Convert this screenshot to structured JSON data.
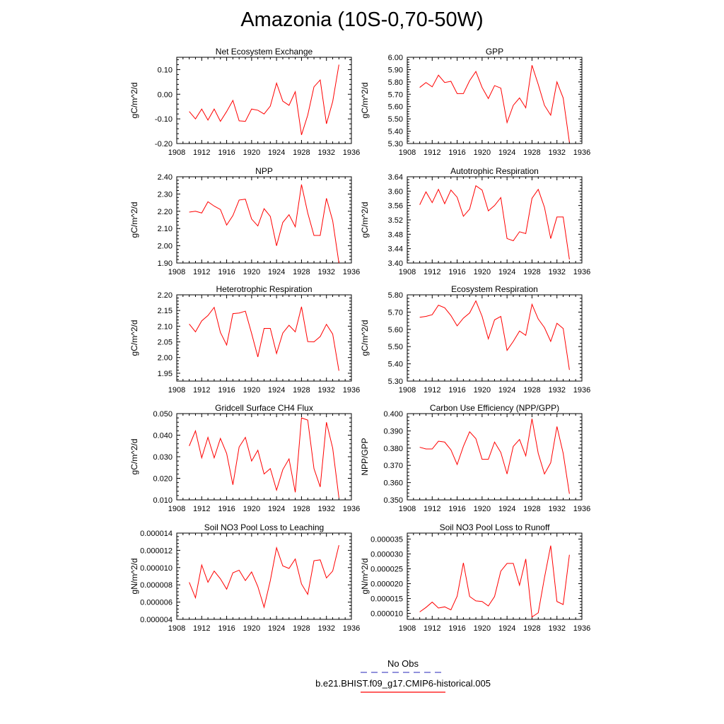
{
  "page": {
    "title": "Amazonia (10S-0,70-50W)"
  },
  "legend": {
    "entries": [
      {
        "label": "No Obs",
        "color": "#5050c8",
        "dash": true
      },
      {
        "label": "b.e21.BHIST.f09_g17.CMIP6-historical.005",
        "color": "#ff0000",
        "dash": false
      }
    ]
  },
  "chart_data": [
    {
      "type": "line",
      "title": "Net Ecosystem Exchange",
      "ylabel": "gC/m^2/d",
      "xlim": [
        1908,
        1936
      ],
      "ylim": [
        -0.2,
        0.15
      ],
      "xticks": [
        1908,
        1912,
        1916,
        1920,
        1924,
        1928,
        1932,
        1936
      ],
      "yticks": [
        "-0.20",
        "-0.10",
        "0.00",
        "0.10"
      ],
      "color": "#ff0000",
      "x": [
        1910,
        1911,
        1912,
        1913,
        1914,
        1915,
        1916,
        1917,
        1918,
        1919,
        1920,
        1921,
        1922,
        1923,
        1924,
        1925,
        1926,
        1927,
        1928,
        1929,
        1930,
        1931,
        1932,
        1933,
        1934
      ],
      "values": [
        -0.07,
        -0.1,
        -0.06,
        -0.105,
        -0.06,
        -0.11,
        -0.07,
        -0.025,
        -0.108,
        -0.11,
        -0.06,
        -0.065,
        -0.08,
        -0.048,
        0.045,
        -0.028,
        -0.045,
        0.01,
        -0.165,
        -0.085,
        0.03,
        0.058,
        -0.12,
        -0.03,
        0.12
      ]
    },
    {
      "type": "line",
      "title": "GPP",
      "ylabel": "gC/m^2/d",
      "xlim": [
        1908,
        1936
      ],
      "ylim": [
        5.3,
        6.0
      ],
      "xticks": [
        1908,
        1912,
        1916,
        1920,
        1924,
        1928,
        1932,
        1936
      ],
      "yticks": [
        "5.30",
        "5.40",
        "5.50",
        "5.60",
        "5.70",
        "5.80",
        "5.90",
        "6.00"
      ],
      "color": "#ff0000",
      "x": [
        1910,
        1911,
        1912,
        1913,
        1914,
        1915,
        1916,
        1917,
        1918,
        1919,
        1920,
        1921,
        1922,
        1923,
        1924,
        1925,
        1926,
        1927,
        1928,
        1929,
        1930,
        1931,
        1932,
        1933,
        1934
      ],
      "values": [
        5.755,
        5.795,
        5.76,
        5.855,
        5.795,
        5.805,
        5.705,
        5.705,
        5.81,
        5.885,
        5.755,
        5.665,
        5.77,
        5.75,
        5.47,
        5.61,
        5.67,
        5.59,
        5.935,
        5.78,
        5.61,
        5.53,
        5.8,
        5.67,
        5.31
      ]
    },
    {
      "type": "line",
      "title": "NPP",
      "ylabel": "gC/m^2/d",
      "xlim": [
        1908,
        1936
      ],
      "ylim": [
        1.9,
        2.4
      ],
      "xticks": [
        1908,
        1912,
        1916,
        1920,
        1924,
        1928,
        1932,
        1936
      ],
      "yticks": [
        "1.90",
        "2.00",
        "2.10",
        "2.20",
        "2.30",
        "2.40"
      ],
      "color": "#ff0000",
      "x": [
        1910,
        1911,
        1912,
        1913,
        1914,
        1915,
        1916,
        1917,
        1918,
        1919,
        1920,
        1921,
        1922,
        1923,
        1924,
        1925,
        1926,
        1927,
        1928,
        1929,
        1930,
        1931,
        1932,
        1933,
        1934
      ],
      "values": [
        2.195,
        2.2,
        2.19,
        2.255,
        2.23,
        2.21,
        2.12,
        2.175,
        2.265,
        2.27,
        2.155,
        2.115,
        2.215,
        2.17,
        2.0,
        2.135,
        2.18,
        2.11,
        2.355,
        2.19,
        2.06,
        2.06,
        2.275,
        2.145,
        1.9
      ]
    },
    {
      "type": "line",
      "title": "Autotrophic Respiration",
      "ylabel": "gC/m^2/d",
      "xlim": [
        1908,
        1936
      ],
      "ylim": [
        3.4,
        3.64
      ],
      "xticks": [
        1908,
        1912,
        1916,
        1920,
        1924,
        1928,
        1932,
        1936
      ],
      "yticks": [
        "3.40",
        "3.44",
        "3.48",
        "3.52",
        "3.56",
        "3.60",
        "3.64"
      ],
      "color": "#ff0000",
      "x": [
        1910,
        1911,
        1912,
        1913,
        1914,
        1915,
        1916,
        1917,
        1918,
        1919,
        1920,
        1921,
        1922,
        1923,
        1924,
        1925,
        1926,
        1927,
        1928,
        1929,
        1930,
        1931,
        1932,
        1933,
        1934
      ],
      "values": [
        3.562,
        3.598,
        3.568,
        3.605,
        3.565,
        3.603,
        3.583,
        3.53,
        3.55,
        3.615,
        3.603,
        3.545,
        3.56,
        3.582,
        3.468,
        3.462,
        3.487,
        3.482,
        3.58,
        3.605,
        3.555,
        3.468,
        3.528,
        3.528,
        3.41
      ]
    },
    {
      "type": "line",
      "title": "Heterotrophic Respiration",
      "ylabel": "gC/m^2/d",
      "xlim": [
        1908,
        1936
      ],
      "ylim": [
        1.925,
        2.2
      ],
      "xticks": [
        1908,
        1912,
        1916,
        1920,
        1924,
        1928,
        1932,
        1936
      ],
      "yticks": [
        "1.95",
        "2.00",
        "2.05",
        "2.10",
        "2.15",
        "2.20"
      ],
      "color": "#ff0000",
      "x": [
        1910,
        1911,
        1912,
        1913,
        1914,
        1915,
        1916,
        1917,
        1918,
        1919,
        1920,
        1921,
        1922,
        1923,
        1924,
        1925,
        1926,
        1927,
        1928,
        1929,
        1930,
        1931,
        1932,
        1933,
        1934
      ],
      "values": [
        2.107,
        2.082,
        2.117,
        2.134,
        2.16,
        2.08,
        2.04,
        2.14,
        2.142,
        2.148,
        2.077,
        2.002,
        2.093,
        2.093,
        2.013,
        2.078,
        2.103,
        2.082,
        2.162,
        2.051,
        2.05,
        2.067,
        2.106,
        2.075,
        1.958
      ]
    },
    {
      "type": "line",
      "title": "Ecosystem Respiration",
      "ylabel": "gC/m^2/d",
      "xlim": [
        1908,
        1936
      ],
      "ylim": [
        5.3,
        5.8
      ],
      "xticks": [
        1908,
        1912,
        1916,
        1920,
        1924,
        1928,
        1932,
        1936
      ],
      "yticks": [
        "5.30",
        "5.40",
        "5.50",
        "5.60",
        "5.70",
        "5.80"
      ],
      "color": "#ff0000",
      "x": [
        1910,
        1911,
        1912,
        1913,
        1914,
        1915,
        1916,
        1917,
        1918,
        1919,
        1920,
        1921,
        1922,
        1923,
        1924,
        1925,
        1926,
        1927,
        1928,
        1929,
        1930,
        1931,
        1932,
        1933,
        1934
      ],
      "values": [
        5.67,
        5.675,
        5.685,
        5.74,
        5.725,
        5.68,
        5.62,
        5.665,
        5.695,
        5.765,
        5.675,
        5.545,
        5.655,
        5.675,
        5.478,
        5.53,
        5.59,
        5.565,
        5.745,
        5.66,
        5.61,
        5.53,
        5.635,
        5.605,
        5.365
      ]
    },
    {
      "type": "line",
      "title": "Gridcell Surface CH4 Flux",
      "ylabel": "gC/m^2/d",
      "xlim": [
        1908,
        1936
      ],
      "ylim": [
        0.01,
        0.05
      ],
      "xticks": [
        1908,
        1912,
        1916,
        1920,
        1924,
        1928,
        1932,
        1936
      ],
      "yticks": [
        "0.010",
        "0.020",
        "0.030",
        "0.040",
        "0.050"
      ],
      "color": "#ff0000",
      "x": [
        1910,
        1911,
        1912,
        1913,
        1914,
        1915,
        1916,
        1917,
        1918,
        1919,
        1920,
        1921,
        1922,
        1923,
        1924,
        1925,
        1926,
        1927,
        1928,
        1929,
        1930,
        1931,
        1932,
        1933,
        1934
      ],
      "values": [
        0.035,
        0.042,
        0.0295,
        0.039,
        0.0295,
        0.0385,
        0.0315,
        0.017,
        0.0345,
        0.039,
        0.028,
        0.033,
        0.022,
        0.0245,
        0.0145,
        0.024,
        0.029,
        0.0135,
        0.048,
        0.047,
        0.0245,
        0.016,
        0.046,
        0.034,
        0.011
      ]
    },
    {
      "type": "line",
      "title": "Carbon Use Efficiency (NPP/GPP)",
      "ylabel": "NPP/GPP",
      "xlim": [
        1908,
        1936
      ],
      "ylim": [
        0.35,
        0.4
      ],
      "xticks": [
        1908,
        1912,
        1916,
        1920,
        1924,
        1928,
        1932,
        1936
      ],
      "yticks": [
        "0.350",
        "0.360",
        "0.370",
        "0.380",
        "0.390",
        "0.400"
      ],
      "color": "#ff0000",
      "x": [
        1910,
        1911,
        1912,
        1913,
        1914,
        1915,
        1916,
        1917,
        1918,
        1919,
        1920,
        1921,
        1922,
        1923,
        1924,
        1925,
        1926,
        1927,
        1928,
        1929,
        1930,
        1931,
        1932,
        1933,
        1934
      ],
      "values": [
        0.3805,
        0.3795,
        0.3795,
        0.384,
        0.3835,
        0.379,
        0.3705,
        0.381,
        0.3895,
        0.3855,
        0.3735,
        0.3735,
        0.3835,
        0.3775,
        0.365,
        0.381,
        0.385,
        0.3755,
        0.397,
        0.377,
        0.365,
        0.3715,
        0.3925,
        0.377,
        0.3535
      ]
    },
    {
      "type": "line",
      "title": "Soil NO3 Pool Loss to Leaching",
      "ylabel": "gN/m^2/d",
      "xlim": [
        1908,
        1936
      ],
      "ylim": [
        4e-06,
        1.4e-05
      ],
      "xticks": [
        1908,
        1912,
        1916,
        1920,
        1924,
        1928,
        1932,
        1936
      ],
      "yticks": [
        "0.000004",
        "0.000006",
        "0.000008",
        "0.000010",
        "0.000012",
        "0.000014"
      ],
      "color": "#ff0000",
      "x": [
        1910,
        1911,
        1912,
        1913,
        1914,
        1915,
        1916,
        1917,
        1918,
        1919,
        1920,
        1921,
        1922,
        1923,
        1924,
        1925,
        1926,
        1927,
        1928,
        1929,
        1930,
        1931,
        1932,
        1933,
        1934
      ],
      "values": [
        8.3e-06,
        6.5e-06,
        1.03e-05,
        8.3e-06,
        9.6e-06,
        8.7e-06,
        7.5e-06,
        9.4e-06,
        9.7e-06,
        8.5e-06,
        9.5e-06,
        7.8e-06,
        5.4e-06,
        8.5e-06,
        1.23e-05,
        1.02e-05,
        9.9e-06,
        1.1e-05,
        8.1e-06,
        6.9e-06,
        1.08e-05,
        1.09e-05,
        8.8e-06,
        9.6e-06,
        1.26e-05
      ]
    },
    {
      "type": "line",
      "title": "Soil NO3 Pool Loss to Runoff",
      "ylabel": "gN/m^2/d",
      "xlim": [
        1908,
        1936
      ],
      "ylim": [
        8e-06,
        3.7e-05
      ],
      "xticks": [
        1908,
        1912,
        1916,
        1920,
        1924,
        1928,
        1932,
        1936
      ],
      "yticks": [
        "0.000010",
        "0.000015",
        "0.000020",
        "0.000025",
        "0.000030",
        "0.000035"
      ],
      "color": "#ff0000",
      "x": [
        1910,
        1911,
        1912,
        1913,
        1914,
        1915,
        1916,
        1917,
        1918,
        1919,
        1920,
        1921,
        1922,
        1923,
        1924,
        1925,
        1926,
        1927,
        1928,
        1929,
        1930,
        1931,
        1932,
        1933,
        1934
      ],
      "values": [
        1.05e-05,
        1.2e-05,
        1.38e-05,
        1.18e-05,
        1.22e-05,
        1.12e-05,
        1.58e-05,
        2.7e-05,
        1.57e-05,
        1.42e-05,
        1.4e-05,
        1.25e-05,
        1.57e-05,
        2.42e-05,
        2.68e-05,
        2.68e-05,
        1.95e-05,
        2.83e-05,
        8.8e-06,
        1.02e-05,
        2.2e-05,
        3.28e-05,
        1.4e-05,
        1.3e-05,
        2.97e-05
      ]
    }
  ]
}
